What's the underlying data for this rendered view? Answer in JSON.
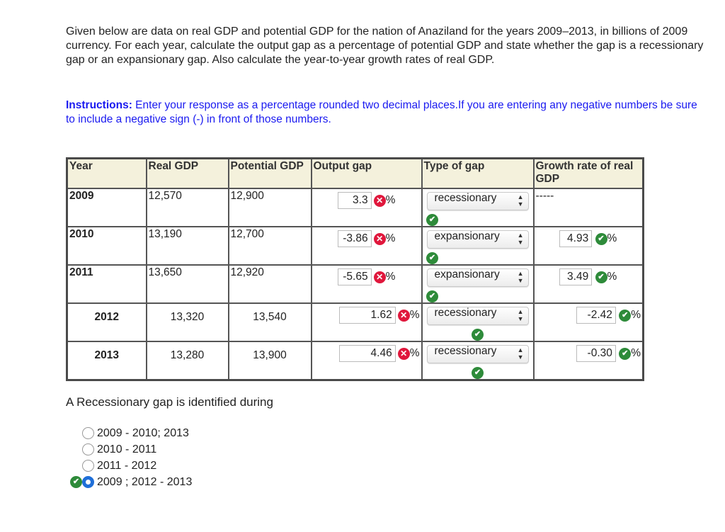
{
  "question_text": "Given below are data on real GDP and potential GDP for the nation of Anaziland for the years 2009–2013, in billions of 2009 currency. For each year, calculate the output gap as a percentage of potential GDP and state whether the gap is a recessionary gap or an expansionary gap. Also calculate the year-to-year growth rates of real GDP.",
  "instructions": {
    "label": "Instructions:",
    "text": " Enter your response as a percentage rounded two decimal places.If you are entering any negative numbers be sure to include a negative sign (-) in front of those numbers."
  },
  "table": {
    "headers": {
      "year": "Year",
      "real_gdp": "Real GDP",
      "potential_gdp": "Potential GDP",
      "output_gap": "Output gap",
      "type_of_gap": "Type of gap",
      "growth_rate": "Growth rate of real GDP"
    },
    "percent_sign": "%",
    "rows": [
      {
        "year": "2009",
        "real_gdp": "12,570",
        "potential_gdp": "12,900",
        "output_gap": "3.3",
        "output_gap_status": "wrong",
        "gap_type": "recessionary",
        "gap_type_status": "correct",
        "growth": "-----",
        "growth_status": "none"
      },
      {
        "year": "2010",
        "real_gdp": "13,190",
        "potential_gdp": "12,700",
        "output_gap": "-3.86",
        "output_gap_status": "wrong",
        "gap_type": "expansionary",
        "gap_type_status": "correct",
        "growth": "4.93",
        "growth_status": "correct"
      },
      {
        "year": "2011",
        "real_gdp": "13,650",
        "potential_gdp": "12,920",
        "output_gap": "-5.65",
        "output_gap_status": "wrong",
        "gap_type": "expansionary",
        "gap_type_status": "correct",
        "growth": "3.49",
        "growth_status": "correct"
      },
      {
        "year": "2012",
        "real_gdp": "13,320",
        "potential_gdp": "13,540",
        "output_gap": "1.62",
        "output_gap_status": "wrong",
        "gap_type": "recessionary",
        "gap_type_status": "correct",
        "growth": "-2.42",
        "growth_status": "correct"
      },
      {
        "year": "2013",
        "real_gdp": "13,280",
        "potential_gdp": "13,900",
        "output_gap": "4.46",
        "output_gap_status": "wrong",
        "gap_type": "recessionary",
        "gap_type_status": "correct",
        "growth": "-0.30",
        "growth_status": "correct"
      }
    ]
  },
  "mc_question": "A Recessionary gap is identified during",
  "mc_options": [
    {
      "label": "2009 - 2010; 2013",
      "selected": false
    },
    {
      "label": "2010 - 2011",
      "selected": false
    },
    {
      "label": "2011 - 2012",
      "selected": false
    },
    {
      "label": "2009 ; 2012 - 2013",
      "selected": true,
      "status": "correct"
    }
  ],
  "colors": {
    "instructions": "#1a1af0",
    "header_bg": "#f4f1dc",
    "wrong": "#e0173c",
    "correct": "#2e8b3a",
    "radio_selected": "#1f6fd8"
  },
  "icons": {
    "wrong": "wrong-x-icon",
    "correct": "correct-check-icon",
    "select_arrows": "updown-arrows-icon"
  }
}
